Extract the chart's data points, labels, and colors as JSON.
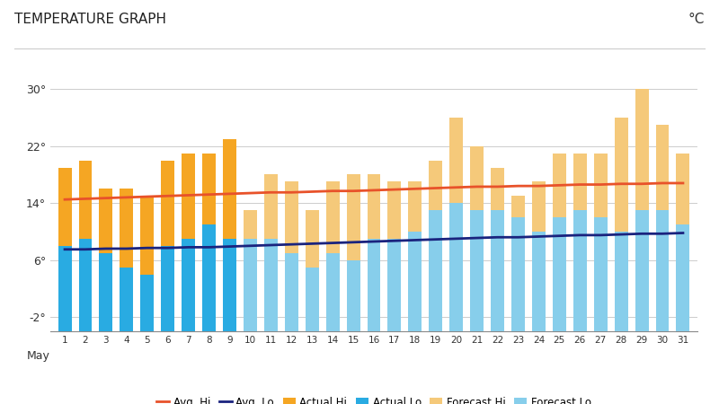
{
  "title": "TEMPERATURE GRAPH",
  "unit": "°C",
  "days": [
    1,
    2,
    3,
    4,
    5,
    6,
    7,
    8,
    9,
    10,
    11,
    12,
    13,
    14,
    15,
    16,
    17,
    18,
    19,
    20,
    21,
    22,
    23,
    24,
    25,
    26,
    27,
    28,
    29,
    30,
    31
  ],
  "actual_hi": [
    19,
    20,
    16,
    16,
    15,
    20,
    21,
    21,
    23,
    null,
    null,
    null,
    null,
    null,
    null,
    null,
    null,
    null,
    null,
    null,
    null,
    null,
    null,
    null,
    null,
    null,
    null,
    null,
    null,
    null,
    null
  ],
  "actual_lo": [
    8,
    9,
    7,
    5,
    4,
    8,
    9,
    11,
    9,
    null,
    null,
    null,
    null,
    null,
    null,
    null,
    null,
    null,
    null,
    null,
    null,
    null,
    null,
    null,
    null,
    null,
    null,
    null,
    null,
    null,
    null
  ],
  "forecast_hi": [
    null,
    null,
    null,
    null,
    null,
    null,
    null,
    null,
    null,
    13,
    18,
    17,
    13,
    17,
    18,
    18,
    17,
    17,
    20,
    26,
    22,
    19,
    15,
    17,
    21,
    21,
    21,
    26,
    30,
    25,
    21
  ],
  "forecast_lo": [
    null,
    null,
    null,
    null,
    null,
    null,
    null,
    null,
    null,
    9,
    9,
    7,
    5,
    7,
    6,
    9,
    9,
    10,
    13,
    14,
    13,
    13,
    12,
    10,
    12,
    13,
    12,
    10,
    13,
    13,
    11
  ],
  "avg_hi": [
    14.5,
    14.6,
    14.7,
    14.8,
    14.9,
    15.0,
    15.1,
    15.2,
    15.3,
    15.4,
    15.5,
    15.5,
    15.6,
    15.7,
    15.7,
    15.8,
    15.9,
    16.0,
    16.1,
    16.2,
    16.3,
    16.3,
    16.4,
    16.4,
    16.5,
    16.6,
    16.6,
    16.7,
    16.7,
    16.8,
    16.8
  ],
  "avg_lo": [
    7.5,
    7.5,
    7.6,
    7.6,
    7.7,
    7.7,
    7.8,
    7.8,
    7.9,
    8.0,
    8.1,
    8.2,
    8.3,
    8.4,
    8.5,
    8.6,
    8.7,
    8.8,
    8.9,
    9.0,
    9.1,
    9.2,
    9.2,
    9.3,
    9.4,
    9.5,
    9.5,
    9.6,
    9.7,
    9.7,
    9.8
  ],
  "color_actual_hi": "#F5A623",
  "color_actual_lo": "#29ABE2",
  "color_forecast_hi": "#F5C97A",
  "color_forecast_lo": "#87CEEB",
  "color_avg_hi": "#E8522A",
  "color_avg_lo": "#1A237E",
  "ylim": [
    -4,
    34
  ],
  "bar_bottom": -4,
  "yticks": [
    -2,
    6,
    14,
    22,
    30
  ],
  "ytick_labels": [
    "-2°",
    "6°",
    "14°",
    "22°",
    "30°"
  ],
  "bg_color": "#FFFFFF",
  "grid_color": "#CCCCCC",
  "bar_width": 0.65
}
